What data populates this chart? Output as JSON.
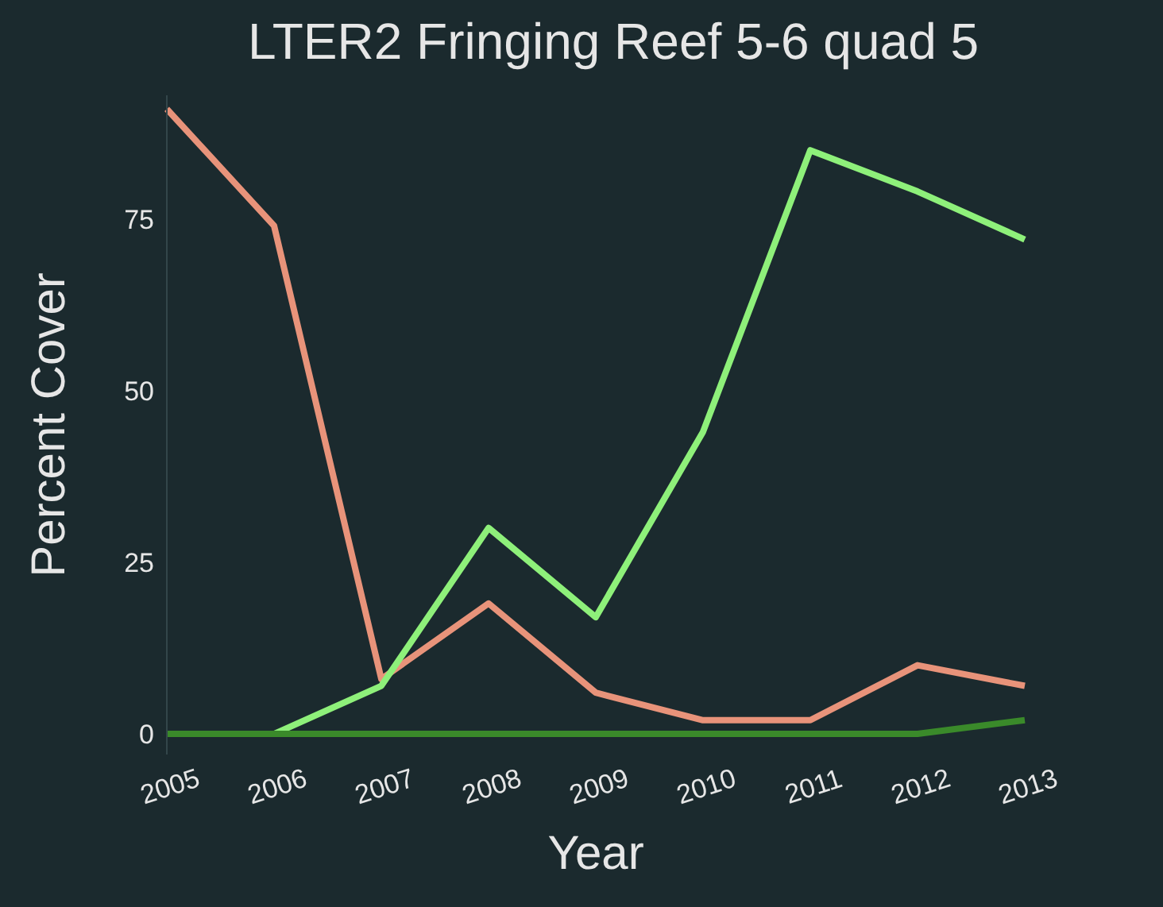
{
  "chart_data": {
    "type": "line",
    "title": "LTER2 Fringing Reef 5-6 quad 5",
    "xlabel": "Year",
    "ylabel": "Percent Cover",
    "categories": [
      "2005",
      "2006",
      "2007",
      "2008",
      "2009",
      "2010",
      "2011",
      "2012",
      "2013"
    ],
    "series": [
      {
        "color": "#e8937a",
        "values": [
          91,
          74,
          8,
          19,
          6,
          2,
          2,
          10,
          7
        ]
      },
      {
        "color": "#8ef07a",
        "values": [
          0,
          0,
          7,
          30,
          17,
          44,
          85,
          79,
          72
        ]
      },
      {
        "color": "#3a8a2a",
        "values": [
          0,
          0,
          0,
          0,
          0,
          0,
          0,
          0,
          2
        ]
      }
    ],
    "ylim": [
      -3,
      93
    ],
    "yticks": [
      0,
      25,
      50,
      75
    ],
    "grid": false,
    "marker": "none",
    "line_style": "solid"
  }
}
